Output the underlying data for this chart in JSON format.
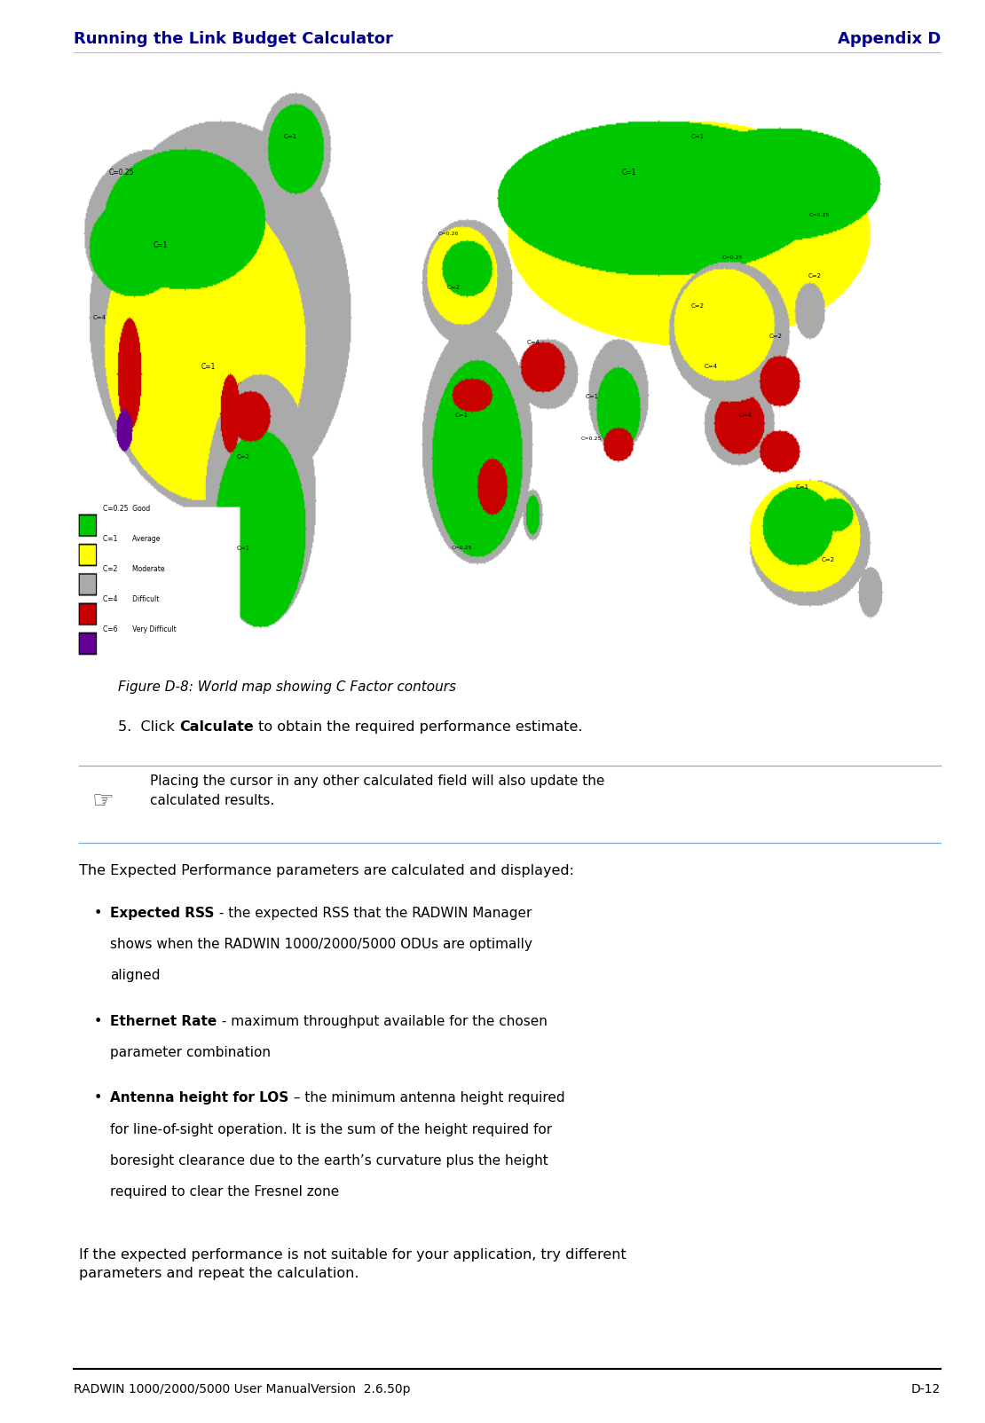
{
  "header_left": "Running the Link Budget Calculator",
  "header_right": "Appendix D",
  "header_color": "#00008B",
  "header_fontsize": 13,
  "figure_caption": "Figure D-8: World map showing C Factor contours",
  "figure_caption_fontsize": 11,
  "step5_prefix": "5.  Click ",
  "step5_bold": "Calculate",
  "step5_suffix": " to obtain the required performance estimate.",
  "step5_fontsize": 11.5,
  "note_text": "Placing the cursor in any other calculated field will also update the\ncalculated results.",
  "note_fontsize": 11,
  "note_line_color": "#7AABDC",
  "body_intro": "The Expected Performance parameters are calculated and displayed:",
  "body_fontsize": 11.5,
  "bullet1_bold": "Expected RSS",
  "bullet1_rest": " - the expected RSS that the RADWIN Manager\nshows when the RADWIN 1000/2000/5000 ODUs are optimally\naligned",
  "bullet2_bold": "Ethernet Rate",
  "bullet2_rest": " - maximum throughput available for the chosen\nparameter combination",
  "bullet3_bold": "Antenna height for LOS",
  "bullet3_rest": " – the minimum antenna height required\nfor line-of-sight operation. It is the sum of the height required for\nboresight clearance due to the earth’s curvature plus the height\nrequired to clear the Fresnel zone",
  "bullet_fontsize": 11,
  "closing_text": "If the expected performance is not suitable for your application, try different\nparameters and repeat the calculation.",
  "closing_fontsize": 11.5,
  "footer_left": "RADWIN 1000/2000/5000 User ManualVersion  2.6.50p",
  "footer_right": "D-12",
  "footer_fontsize": 10,
  "page_bg": "#FFFFFF",
  "text_color": "#000000",
  "line_color": "#000000",
  "lm": 0.075,
  "rm": 0.955,
  "text_lm": 0.12,
  "text_rm": 0.93
}
